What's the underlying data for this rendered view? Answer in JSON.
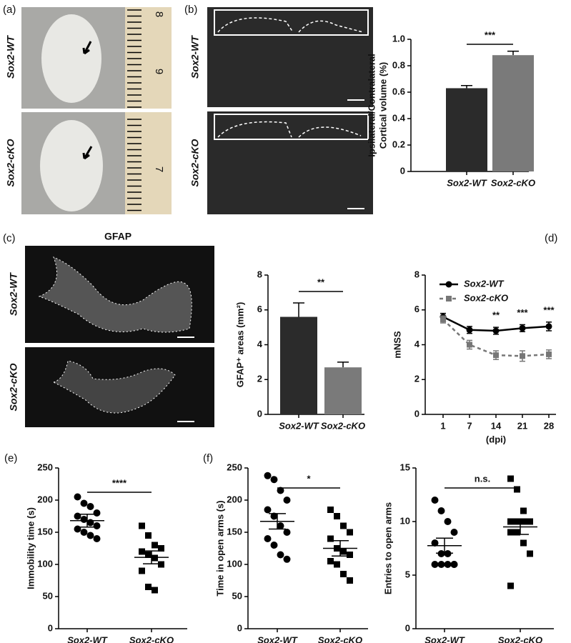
{
  "figure": {
    "panel_labels": [
      "(a)",
      "(b)",
      "(c)",
      "(d)",
      "(e)",
      "(f)"
    ],
    "wt": "Sox2-WT",
    "cko": "Sox2-cKO",
    "stain": "GFAP",
    "ruler_numbers": [
      "8",
      "9",
      "7"
    ]
  },
  "chart_data": [
    {
      "type": "bar",
      "categories": [
        "Sox2-WT",
        "Sox2-cKO"
      ],
      "values": [
        0.63,
        0.88
      ],
      "errors": [
        0.02,
        0.03
      ],
      "colors": [
        "#2b2b2b",
        "#7a7a7a"
      ],
      "ylabel": [
        "Ipsilateral/Contralateral",
        "Cortical volume (%)"
      ],
      "ylim": [
        0,
        1
      ],
      "yticks": [
        0,
        0.2,
        0.4,
        0.6,
        0.8,
        {
          "value": 1,
          "label": "1.0"
        }
      ],
      "significance": "***"
    },
    {
      "type": "bar",
      "categories": [
        "Sox2-WT",
        "Sox2-cKO"
      ],
      "values": [
        5.6,
        2.7
      ],
      "errors": [
        0.8,
        0.3
      ],
      "colors": [
        "#2b2b2b",
        "#7a7a7a"
      ],
      "ylabel": [
        "GFAP⁺ areas (mm²)"
      ],
      "ylim": [
        0,
        8
      ],
      "yticks": [
        0,
        2,
        4,
        6,
        8
      ],
      "significance": "**"
    },
    {
      "type": "line",
      "categories": [
        "1",
        "7",
        "14",
        "21",
        "28"
      ],
      "xlabel": "(dpi)",
      "ylabel": [
        "mNSS"
      ],
      "ylim": [
        0,
        8
      ],
      "yticks": [
        0,
        2,
        4,
        6,
        8
      ],
      "legend": "top-left",
      "series": [
        {
          "name": "Sox2-WT",
          "color": "#000000",
          "values": [
            5.6,
            4.85,
            4.8,
            4.95,
            5.05
          ],
          "errors": [
            0.2,
            0.2,
            0.2,
            0.2,
            0.25
          ]
        },
        {
          "name": "Sox2-cKO",
          "color": "#777777",
          "values": [
            5.45,
            4.0,
            3.4,
            3.35,
            3.45
          ],
          "errors": [
            0.2,
            0.25,
            0.25,
            0.3,
            0.25
          ]
        }
      ],
      "annotations": [
        null,
        null,
        "**",
        "***",
        "***"
      ]
    },
    {
      "type": "strip",
      "categories": [
        "Sox2-WT",
        "Sox2-cKO"
      ],
      "ylabel": [
        "Immobility time (s)"
      ],
      "ylim": [
        0,
        250
      ],
      "yticks": [
        0,
        50,
        100,
        150,
        200,
        250
      ],
      "significance": "****",
      "points": [
        [
          205,
          195,
          190,
          180,
          175,
          170,
          165,
          160,
          155,
          150,
          145,
          140
        ],
        [
          160,
          145,
          130,
          125,
          120,
          115,
          110,
          100,
          90,
          65,
          60
        ]
      ],
      "means": [
        168,
        111
      ],
      "sem": [
        10,
        10
      ]
    },
    {
      "type": "strip",
      "categories": [
        "Sox2-WT",
        "Sox2-cKO"
      ],
      "ylabel": [
        "Time in open arms (s)"
      ],
      "ylim": [
        0,
        250
      ],
      "yticks": [
        0,
        50,
        100,
        150,
        200,
        250
      ],
      "significance": "*",
      "points": [
        [
          238,
          232,
          215,
          200,
          185,
          175,
          160,
          150,
          140,
          130,
          115,
          108
        ],
        [
          185,
          175,
          160,
          150,
          140,
          125,
          120,
          115,
          105,
          100,
          85,
          75
        ]
      ],
      "means": [
        167,
        125
      ],
      "sem": [
        12,
        12
      ]
    },
    {
      "type": "strip",
      "categories": [
        "Sox2-WT",
        "Sox2-cKO"
      ],
      "ylabel": [
        "Entries to open arms"
      ],
      "ylim": [
        0,
        15
      ],
      "yticks": [
        0,
        5,
        10,
        15
      ],
      "significance": "n.s.",
      "points": [
        [
          12,
          11,
          10,
          9,
          8,
          7,
          7,
          6,
          6,
          6,
          6,
          6
        ],
        [
          14,
          13,
          11,
          10,
          10,
          10,
          10,
          10,
          9,
          9,
          8,
          7,
          4
        ]
      ],
      "means": [
        7.75,
        9.5
      ],
      "sem": [
        0.7,
        0.7
      ]
    }
  ]
}
